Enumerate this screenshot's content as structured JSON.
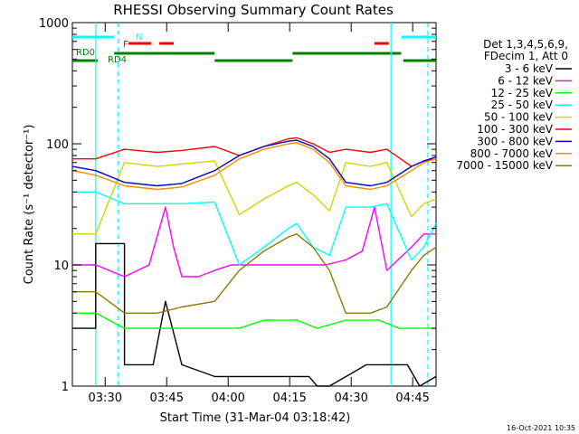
{
  "chart_data": {
    "type": "line",
    "title": "RHESSI Observing Summary Count Rates",
    "xlabel": "Start Time (31-Mar-04 03:18:42)",
    "ylabel": "Count Rate (s⁻¹ detector⁻¹)",
    "y_scale": "log",
    "ylim": [
      1,
      1000
    ],
    "xlim_minutes": [
      3.3,
      62.0
    ],
    "grid": false,
    "legend_placement": "right",
    "x_ticks": [
      {
        "minute": 11.3,
        "label": "03:30"
      },
      {
        "minute": 26.3,
        "label": "03:45"
      },
      {
        "minute": 41.3,
        "label": "04:00"
      },
      {
        "minute": 56.3,
        "label": "04:15"
      },
      {
        "minute": 71.3,
        "label": "04:30"
      },
      {
        "minute": 86.3,
        "label": "04:45"
      }
    ],
    "y_ticks": [
      {
        "value": 1,
        "label": "1"
      },
      {
        "value": 10,
        "label": "10"
      },
      {
        "value": 100,
        "label": "100"
      },
      {
        "value": 1000,
        "label": "1000"
      }
    ],
    "legend_header": [
      "Det 1,3,4,5,6,9,",
      "FDecim 1, Att 0"
    ],
    "series": [
      {
        "name": "3 - 6 keV",
        "color": "#000000",
        "points": [
          [
            3,
            3
          ],
          [
            9,
            3
          ],
          [
            9,
            15
          ],
          [
            16,
            15
          ],
          [
            16,
            1.5
          ],
          [
            23,
            1.5
          ],
          [
            26,
            5
          ],
          [
            30,
            1.5
          ],
          [
            38,
            1.2
          ],
          [
            44,
            1.2
          ],
          [
            55,
            1.2
          ],
          [
            61,
            1.2
          ],
          [
            63,
            1
          ],
          [
            66,
            1
          ],
          [
            75,
            1.5
          ],
          [
            85,
            1.5
          ],
          [
            88,
            1
          ],
          [
            92,
            1.2
          ]
        ]
      },
      {
        "name": "6 - 12 keV",
        "color": "#ff00ff",
        "points": [
          [
            3,
            10
          ],
          [
            9,
            10
          ],
          [
            16,
            8
          ],
          [
            22,
            10
          ],
          [
            26,
            30
          ],
          [
            28,
            14
          ],
          [
            30,
            8
          ],
          [
            34,
            8
          ],
          [
            38,
            9
          ],
          [
            42,
            10
          ],
          [
            48,
            10
          ],
          [
            55,
            10
          ],
          [
            61,
            10
          ],
          [
            65,
            10
          ],
          [
            70,
            11
          ],
          [
            74,
            13
          ],
          [
            77,
            30
          ],
          [
            80,
            9
          ],
          [
            86,
            14
          ],
          [
            89,
            18
          ],
          [
            92,
            18
          ]
        ]
      },
      {
        "name": "12 - 25 keV",
        "color": "#00ff00",
        "points": [
          [
            3,
            4
          ],
          [
            9,
            4
          ],
          [
            16,
            3
          ],
          [
            24,
            3
          ],
          [
            30,
            3
          ],
          [
            38,
            3
          ],
          [
            44,
            3
          ],
          [
            50,
            3.5
          ],
          [
            58,
            3.5
          ],
          [
            63,
            3
          ],
          [
            70,
            3.5
          ],
          [
            78,
            3.5
          ],
          [
            83,
            3
          ],
          [
            87,
            3
          ],
          [
            92,
            3
          ]
        ]
      },
      {
        "name": "25 - 50 keV",
        "color": "#00ffff",
        "points": [
          [
            3,
            40
          ],
          [
            9,
            40
          ],
          [
            16,
            32
          ],
          [
            24,
            32
          ],
          [
            30,
            32
          ],
          [
            38,
            33
          ],
          [
            44,
            10
          ],
          [
            50,
            14
          ],
          [
            56,
            20
          ],
          [
            58,
            22
          ],
          [
            62,
            14
          ],
          [
            66,
            12
          ],
          [
            70,
            30
          ],
          [
            76,
            30
          ],
          [
            80,
            32
          ],
          [
            86,
            11
          ],
          [
            89,
            14
          ],
          [
            92,
            22
          ]
        ]
      },
      {
        "name": "50 - 100 keV",
        "color": "#d4d400",
        "points": [
          [
            3,
            18
          ],
          [
            9,
            18
          ],
          [
            16,
            70
          ],
          [
            24,
            65
          ],
          [
            30,
            68
          ],
          [
            38,
            72
          ],
          [
            44,
            26
          ],
          [
            50,
            35
          ],
          [
            56,
            45
          ],
          [
            58,
            48
          ],
          [
            62,
            38
          ],
          [
            66,
            28
          ],
          [
            70,
            70
          ],
          [
            76,
            65
          ],
          [
            80,
            70
          ],
          [
            86,
            25
          ],
          [
            89,
            32
          ],
          [
            92,
            35
          ]
        ]
      },
      {
        "name": "100 - 300 keV",
        "color": "#ff0000",
        "points": [
          [
            3,
            75
          ],
          [
            9,
            75
          ],
          [
            16,
            90
          ],
          [
            24,
            85
          ],
          [
            30,
            88
          ],
          [
            38,
            95
          ],
          [
            44,
            80
          ],
          [
            50,
            95
          ],
          [
            56,
            110
          ],
          [
            58,
            112
          ],
          [
            62,
            100
          ],
          [
            66,
            85
          ],
          [
            70,
            90
          ],
          [
            76,
            85
          ],
          [
            80,
            90
          ],
          [
            86,
            65
          ],
          [
            89,
            72
          ],
          [
            92,
            75
          ]
        ]
      },
      {
        "name": "300 - 800 keV",
        "color": "#0000cc",
        "points": [
          [
            3,
            65
          ],
          [
            9,
            60
          ],
          [
            16,
            48
          ],
          [
            24,
            45
          ],
          [
            30,
            47
          ],
          [
            38,
            60
          ],
          [
            44,
            80
          ],
          [
            50,
            95
          ],
          [
            56,
            105
          ],
          [
            58,
            107
          ],
          [
            62,
            95
          ],
          [
            66,
            75
          ],
          [
            70,
            48
          ],
          [
            76,
            45
          ],
          [
            80,
            48
          ],
          [
            86,
            65
          ],
          [
            89,
            72
          ],
          [
            92,
            78
          ]
        ]
      },
      {
        "name": "800 - 7000 keV",
        "color": "#ff8c00",
        "points": [
          [
            3,
            60
          ],
          [
            9,
            55
          ],
          [
            16,
            45
          ],
          [
            24,
            42
          ],
          [
            30,
            44
          ],
          [
            38,
            55
          ],
          [
            44,
            75
          ],
          [
            50,
            90
          ],
          [
            56,
            100
          ],
          [
            58,
            102
          ],
          [
            62,
            90
          ],
          [
            66,
            70
          ],
          [
            70,
            45
          ],
          [
            76,
            42
          ],
          [
            80,
            45
          ],
          [
            86,
            60
          ],
          [
            89,
            70
          ],
          [
            92,
            75
          ]
        ]
      },
      {
        "name": "7000 - 15000 keV",
        "color": "#8b7a00",
        "points": [
          [
            3,
            6
          ],
          [
            9,
            6
          ],
          [
            16,
            4
          ],
          [
            24,
            4
          ],
          [
            30,
            4.5
          ],
          [
            38,
            5
          ],
          [
            44,
            9
          ],
          [
            50,
            13
          ],
          [
            56,
            17
          ],
          [
            58,
            18
          ],
          [
            62,
            14
          ],
          [
            66,
            9
          ],
          [
            70,
            4
          ],
          [
            76,
            4
          ],
          [
            80,
            4.5
          ],
          [
            86,
            9
          ],
          [
            89,
            12
          ],
          [
            92,
            14
          ]
        ]
      }
    ],
    "flag_labels": [
      {
        "label": "N",
        "color": "#00ffff"
      },
      {
        "label": "F",
        "color": "#ff0000"
      },
      {
        "label": "RD0",
        "color": "#008000"
      },
      {
        "label": "RD4",
        "color": "#008000"
      }
    ],
    "flag_bars": [
      {
        "color": "#00ffff",
        "segments": [
          [
            3.3,
            13.5
          ],
          [
            83.5,
            92
          ]
        ]
      },
      {
        "color": "#ff0000",
        "segments": [
          [
            17,
            22.5
          ],
          [
            24.5,
            28
          ],
          [
            77,
            80.5
          ]
        ]
      },
      {
        "color": "#008000",
        "level": "upper",
        "segments": [
          [
            13.5,
            38
          ],
          [
            57,
            83.5
          ]
        ]
      },
      {
        "color": "#008000",
        "level": "lower",
        "segments": [
          [
            3.3,
            9.5
          ],
          [
            38,
            57
          ],
          [
            84,
            92
          ]
        ]
      }
    ],
    "vlines": [
      {
        "minute": 9.0,
        "color": "#00ffff",
        "style": "solid"
      },
      {
        "minute": 14.5,
        "color": "#00ffff",
        "style": "dashed"
      },
      {
        "minute": 81.0,
        "color": "#00ffff",
        "style": "solid"
      },
      {
        "minute": 90.0,
        "color": "#00ffff",
        "style": "dashed"
      }
    ]
  },
  "footer_timestamp": "16-Oct-2021 10:35"
}
